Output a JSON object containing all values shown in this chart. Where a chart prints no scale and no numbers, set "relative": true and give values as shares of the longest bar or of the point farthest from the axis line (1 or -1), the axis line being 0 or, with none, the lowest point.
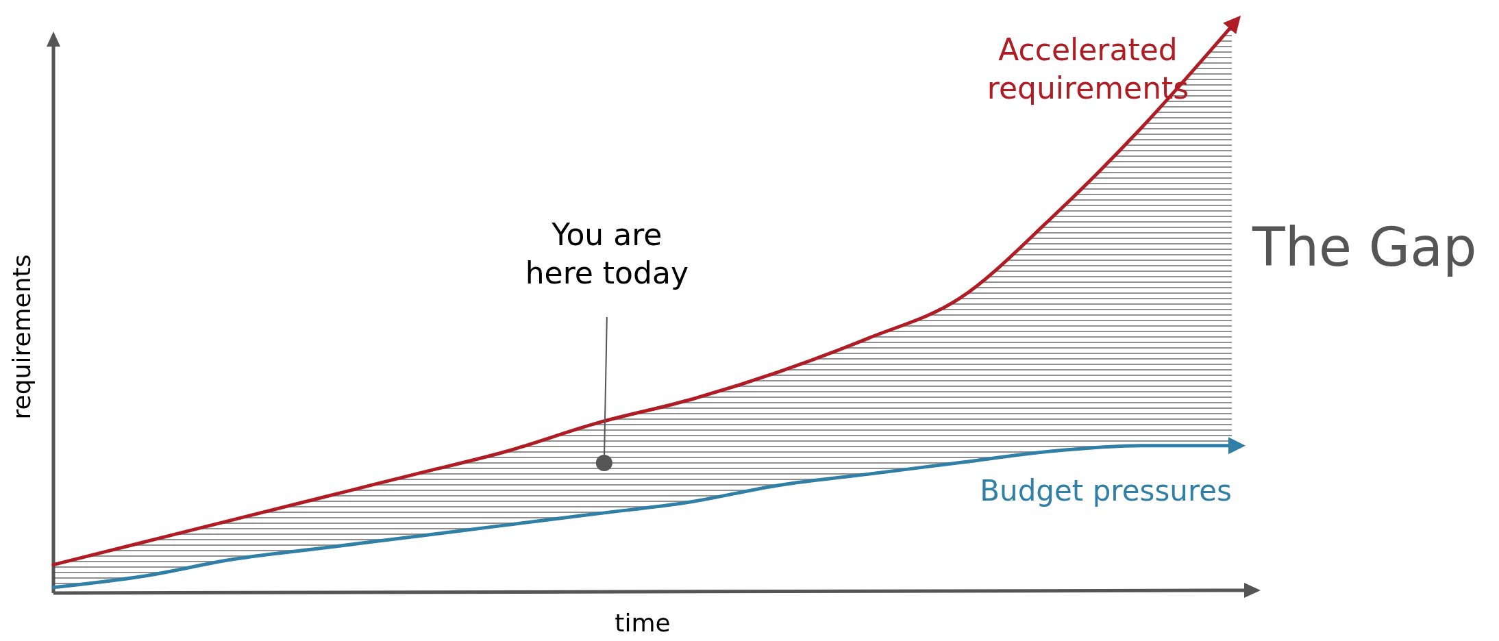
{
  "chart_data": {
    "type": "line",
    "relative": true,
    "xlabel": "time",
    "ylabel": "requirements",
    "categories": [
      null,
      null,
      null,
      null,
      null,
      null,
      null,
      null,
      null,
      null,
      null,
      null,
      null,
      null
    ],
    "series": [
      {
        "name": "Accelerated requirements",
        "color": "#b01c24",
        "values": [
          0.05,
          0.09,
          0.13,
          0.17,
          0.21,
          0.25,
          0.3,
          0.34,
          0.39,
          0.45,
          0.52,
          0.66,
          0.82,
          1
        ],
        "lower": [
          0.01,
          0.03,
          0.06,
          0.08,
          0.1,
          0.12,
          0.14,
          0.16,
          0.19,
          0.21,
          0.23,
          0.25,
          0.26,
          0.26
        ],
        "upper": [
          0.05,
          0.09,
          0.13,
          0.17,
          0.21,
          0.25,
          0.3,
          0.34,
          0.39,
          0.45,
          0.52,
          0.66,
          0.82,
          1
        ]
      },
      {
        "name": "Budget pressures",
        "color": "#2f7fa6",
        "values": [
          0.01,
          0.03,
          0.06,
          0.08,
          0.1,
          0.12,
          0.14,
          0.16,
          0.19,
          0.21,
          0.23,
          0.25,
          0.26,
          0.26
        ]
      }
    ],
    "annotations": [
      "The Gap",
      "You are here today"
    ],
    "legend": "right",
    "marker": "none",
    "line_style": "solid"
  }
}
